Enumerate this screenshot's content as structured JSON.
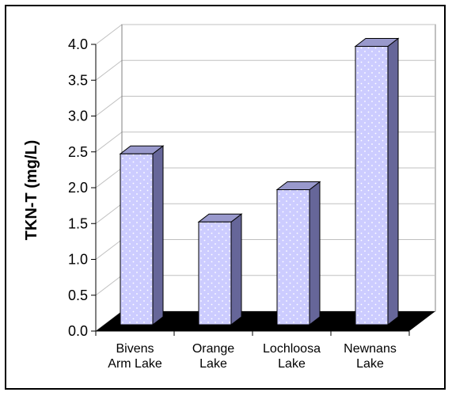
{
  "chart_data": {
    "type": "bar",
    "categories": [
      [
        "Bivens",
        "Arm Lake"
      ],
      [
        "Orange",
        "Lake"
      ],
      [
        "Lochloosa",
        "Lake"
      ],
      [
        "Newnans",
        "Lake"
      ]
    ],
    "values": [
      2.45,
      1.5,
      1.95,
      3.95
    ],
    "title": "",
    "xlabel": "",
    "ylabel": "TKN-T (mg/L)",
    "ylim": [
      0,
      4
    ],
    "yticks": [
      "0.0",
      "0.5",
      "1.0",
      "1.5",
      "2.0",
      "2.5",
      "3.0",
      "3.5",
      "4.0"
    ],
    "grid": true,
    "style": "3d-bar",
    "colors": {
      "bar_front": "#ccccff",
      "bar_side": "#666699",
      "bar_top": "#9999cc",
      "floor": "#000000",
      "grid": "#c0c0c0"
    }
  }
}
